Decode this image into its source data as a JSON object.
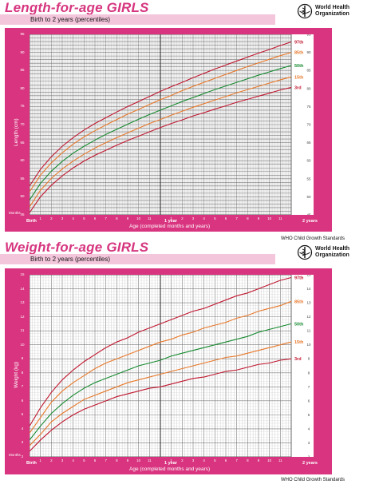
{
  "charts": [
    {
      "title": "Length-for-age GIRLS",
      "subtitle": "Birth to 2 years (percentiles)",
      "who_line1": "World Health",
      "who_line2": "Organization",
      "ylabel": "Length (cm)",
      "xlabel": "Age (completed months and years)",
      "months_label": "Months",
      "birth_label": "Birth",
      "year1_label": "1 year",
      "year2_label": "2 years",
      "source": "WHO Child Growth Standards",
      "yticks": [
        "45",
        "50",
        "55",
        "60",
        "65",
        "70",
        "75",
        "80",
        "85",
        "90",
        "95"
      ],
      "ryticks": [
        "45",
        "50",
        "55",
        "60",
        "65",
        "70",
        "75",
        "80",
        "85",
        "90",
        "95"
      ],
      "xticks": [
        "1",
        "2",
        "3",
        "4",
        "5",
        "6",
        "7",
        "8",
        "9",
        "10",
        "11",
        "",
        "1",
        "2",
        "3",
        "4",
        "5",
        "6",
        "7",
        "8",
        "9",
        "10",
        "11",
        ""
      ]
    },
    {
      "title": "Weight-for-age GIRLS",
      "subtitle": "Birth to 2 years (percentiles)",
      "who_line1": "World Health",
      "who_line2": "Organization",
      "ylabel": "Weight (kg)",
      "xlabel": "Age (completed months and years)",
      "months_label": "Months",
      "birth_label": "Birth",
      "year1_label": "1 year",
      "year2_label": "2 years",
      "source": "WHO Child Growth Standards",
      "yticks": [
        "2",
        "3",
        "4",
        "5",
        "6",
        "7",
        "8",
        "9",
        "10",
        "11",
        "12",
        "13",
        "14",
        "15"
      ],
      "ryticks": [
        "2",
        "3",
        "4",
        "5",
        "6",
        "7",
        "8",
        "9",
        "10",
        "11",
        "12",
        "13",
        "14",
        "15"
      ],
      "xticks": [
        "1",
        "2",
        "3",
        "4",
        "5",
        "6",
        "7",
        "8",
        "9",
        "10",
        "11",
        "",
        "1",
        "2",
        "3",
        "4",
        "5",
        "6",
        "7",
        "8",
        "9",
        "10",
        "11",
        ""
      ]
    }
  ],
  "chart_data": [
    {
      "type": "line",
      "title": "Length-for-age GIRLS",
      "subtitle": "Birth to 2 years (percentiles)",
      "xlabel": "Age (completed months and years)",
      "ylabel": "Length (cm)",
      "xlim": [
        0,
        24
      ],
      "ylim": [
        45,
        95
      ],
      "grid": true,
      "x": [
        0,
        1,
        2,
        3,
        4,
        5,
        6,
        7,
        8,
        9,
        10,
        11,
        12,
        13,
        14,
        15,
        16,
        17,
        18,
        19,
        20,
        21,
        22,
        23,
        24
      ],
      "series": [
        {
          "name": "97th",
          "color": "#c0172f",
          "values": [
            53.0,
            57.6,
            61.1,
            64.0,
            66.4,
            68.5,
            70.3,
            71.9,
            73.5,
            75.0,
            76.4,
            77.8,
            79.2,
            80.5,
            81.7,
            83.0,
            84.2,
            85.4,
            86.5,
            87.6,
            88.7,
            89.8,
            90.8,
            91.9,
            92.9
          ]
        },
        {
          "name": "85th",
          "color": "#e8782a",
          "values": [
            51.4,
            56.0,
            59.4,
            62.2,
            64.6,
            66.6,
            68.3,
            69.9,
            71.4,
            72.9,
            74.2,
            75.6,
            76.9,
            78.1,
            79.4,
            80.6,
            81.7,
            82.8,
            83.9,
            85.0,
            86.1,
            87.1,
            88.1,
            89.1,
            90.0
          ]
        },
        {
          "name": "50th",
          "color": "#168a2f",
          "values": [
            49.1,
            53.7,
            57.1,
            59.8,
            62.1,
            64.0,
            65.7,
            67.3,
            68.7,
            70.1,
            71.5,
            72.8,
            74.0,
            75.2,
            76.4,
            77.5,
            78.6,
            79.7,
            80.7,
            81.7,
            82.7,
            83.7,
            84.6,
            85.5,
            86.4
          ]
        },
        {
          "name": "15th",
          "color": "#e8782a",
          "values": [
            47.2,
            51.8,
            55.1,
            57.7,
            59.9,
            61.8,
            63.5,
            65.0,
            66.4,
            67.7,
            69.0,
            70.3,
            71.4,
            72.6,
            73.7,
            74.8,
            75.8,
            76.8,
            77.8,
            78.8,
            79.7,
            80.6,
            81.5,
            82.4,
            83.2
          ]
        },
        {
          "name": "3rd",
          "color": "#c0172f",
          "values": [
            45.6,
            50.0,
            53.2,
            55.8,
            58.0,
            59.9,
            61.5,
            62.9,
            64.3,
            65.6,
            66.8,
            68.0,
            69.2,
            70.3,
            71.3,
            72.4,
            73.3,
            74.3,
            75.2,
            76.2,
            77.0,
            77.9,
            78.7,
            79.6,
            80.3
          ]
        }
      ]
    },
    {
      "type": "line",
      "title": "Weight-for-age GIRLS",
      "subtitle": "Birth to 2 years (percentiles)",
      "xlabel": "Age (completed months and years)",
      "ylabel": "Weight (kg)",
      "xlim": [
        0,
        24
      ],
      "ylim": [
        2,
        15
      ],
      "grid": true,
      "x": [
        0,
        1,
        2,
        3,
        4,
        5,
        6,
        7,
        8,
        9,
        10,
        11,
        12,
        13,
        14,
        15,
        16,
        17,
        18,
        19,
        20,
        21,
        22,
        23,
        24
      ],
      "series": [
        {
          "name": "97th",
          "color": "#c0172f",
          "values": [
            4.2,
            5.5,
            6.6,
            7.5,
            8.2,
            8.8,
            9.3,
            9.8,
            10.2,
            10.5,
            10.9,
            11.2,
            11.5,
            11.8,
            12.1,
            12.4,
            12.6,
            12.9,
            13.2,
            13.5,
            13.7,
            14.0,
            14.3,
            14.6,
            14.8
          ]
        },
        {
          "name": "85th",
          "color": "#e8782a",
          "values": [
            3.7,
            4.8,
            5.9,
            6.7,
            7.3,
            7.8,
            8.3,
            8.7,
            9.0,
            9.3,
            9.6,
            9.9,
            10.2,
            10.4,
            10.7,
            10.9,
            11.2,
            11.4,
            11.6,
            11.9,
            12.1,
            12.4,
            12.6,
            12.8,
            13.1
          ]
        },
        {
          "name": "50th",
          "color": "#168a2f",
          "values": [
            3.2,
            4.2,
            5.1,
            5.8,
            6.4,
            6.9,
            7.3,
            7.6,
            7.9,
            8.2,
            8.5,
            8.7,
            8.9,
            9.2,
            9.4,
            9.6,
            9.8,
            10.0,
            10.2,
            10.4,
            10.6,
            10.9,
            11.1,
            11.3,
            11.5
          ]
        },
        {
          "name": "15th",
          "color": "#e8782a",
          "values": [
            2.8,
            3.6,
            4.5,
            5.1,
            5.6,
            6.1,
            6.4,
            6.7,
            7.0,
            7.3,
            7.5,
            7.7,
            7.9,
            8.1,
            8.3,
            8.5,
            8.7,
            8.9,
            9.1,
            9.2,
            9.4,
            9.6,
            9.8,
            10.0,
            10.2
          ]
        },
        {
          "name": "3rd",
          "color": "#c0172f",
          "values": [
            2.4,
            3.2,
            3.9,
            4.5,
            5.0,
            5.4,
            5.7,
            6.0,
            6.3,
            6.5,
            6.7,
            6.9,
            7.0,
            7.2,
            7.4,
            7.6,
            7.7,
            7.9,
            8.1,
            8.2,
            8.4,
            8.6,
            8.7,
            8.9,
            9.0
          ]
        }
      ]
    }
  ]
}
